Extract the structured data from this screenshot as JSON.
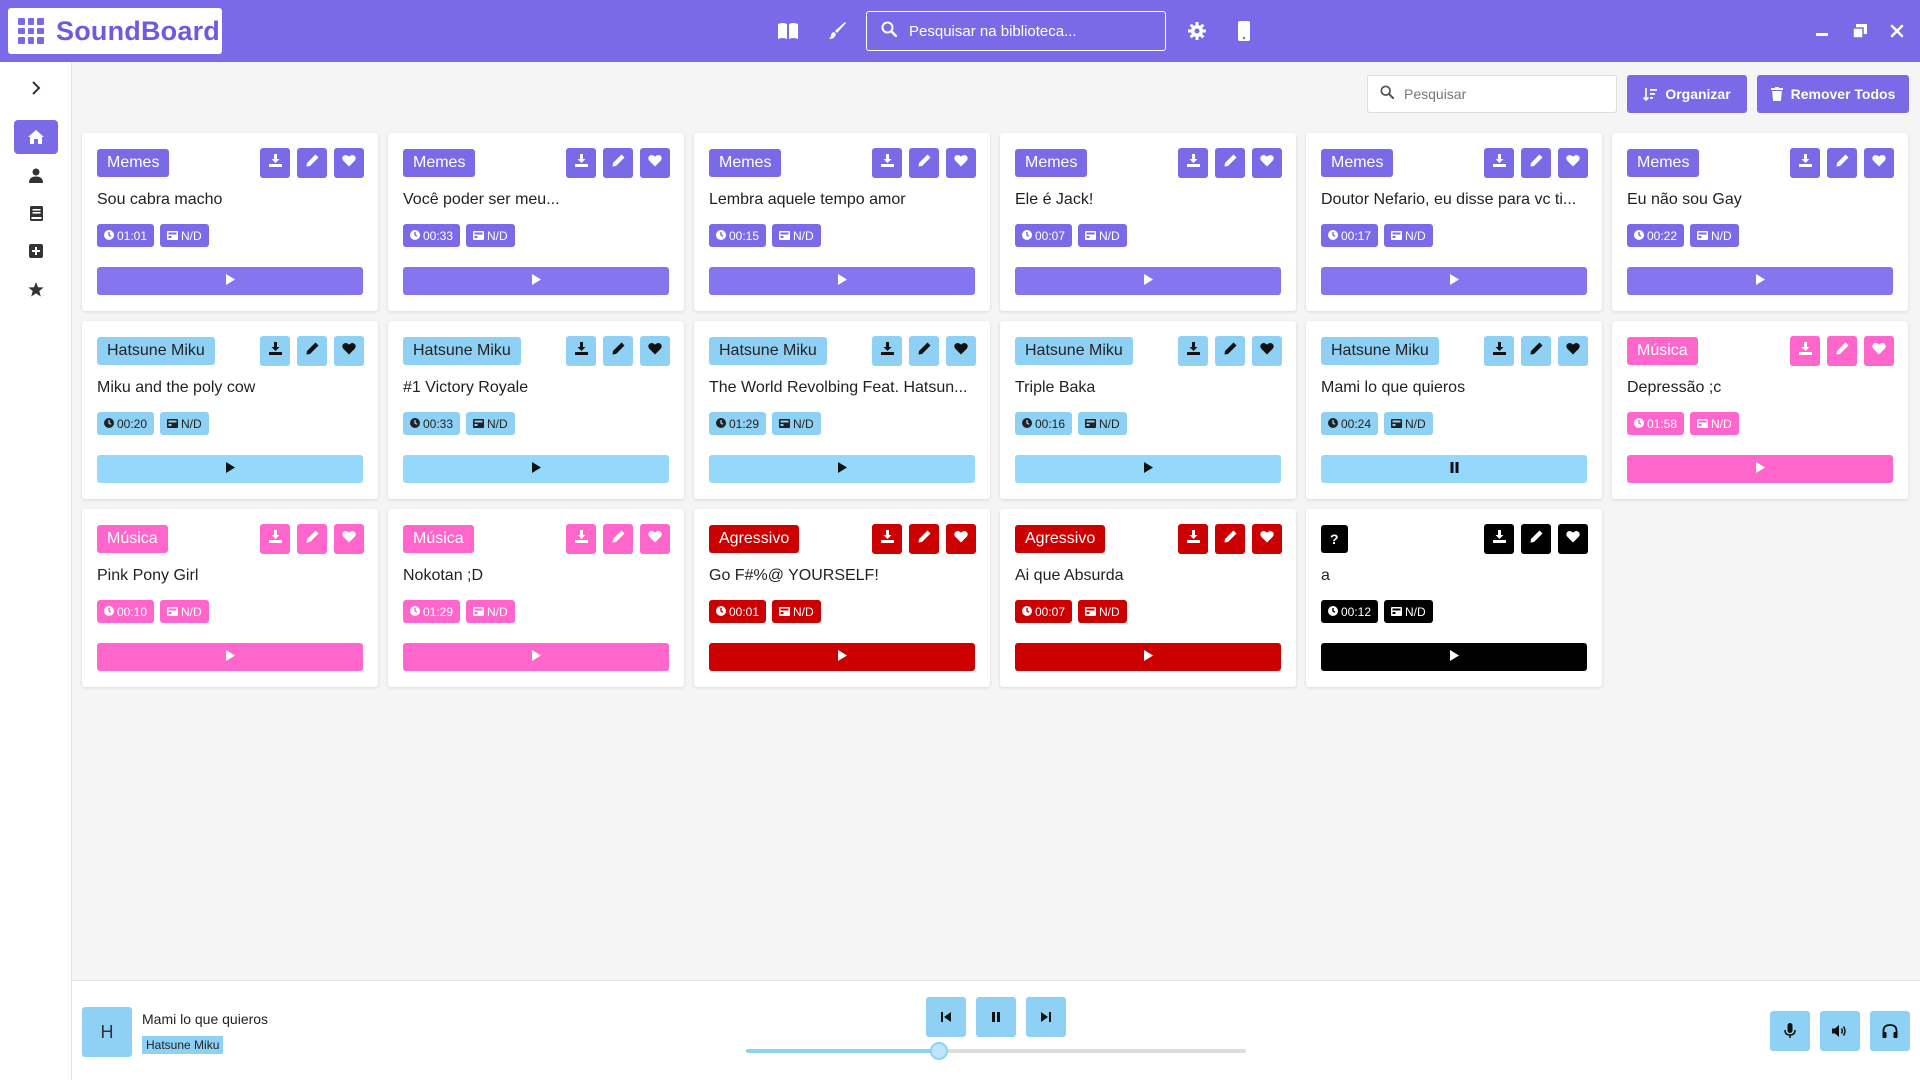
{
  "app": {
    "title": "SoundBoard"
  },
  "header": {
    "search_placeholder": "Pesquisar na biblioteca..."
  },
  "toolbar": {
    "search_placeholder": "Pesquisar",
    "organize_label": "Organizar",
    "remove_all_label": "Remover Todos"
  },
  "sidebar": {
    "items": [
      {
        "icon": "home-icon",
        "active": true
      },
      {
        "icon": "user-icon",
        "active": false
      },
      {
        "icon": "book-icon",
        "active": false
      },
      {
        "icon": "plus-square-icon",
        "active": false
      },
      {
        "icon": "star-icon",
        "active": false
      }
    ]
  },
  "colors": {
    "accent": "#7b6ae8",
    "memes": "#7b6ae8",
    "memes_play": "#8575ee",
    "miku": "#8ed1f5",
    "musica": "#ff66cc",
    "agressivo": "#cc0000",
    "unknown": "#000000"
  },
  "cards": [
    {
      "category": "Memes",
      "title": "Sou cabra macho",
      "duration": "01:01",
      "size": "N/D",
      "playing": false,
      "theme": "memes"
    },
    {
      "category": "Memes",
      "title": "Você poder ser meu...",
      "duration": "00:33",
      "size": "N/D",
      "playing": false,
      "theme": "memes"
    },
    {
      "category": "Memes",
      "title": "Lembra aquele tempo amor",
      "duration": "00:15",
      "size": "N/D",
      "playing": false,
      "theme": "memes"
    },
    {
      "category": "Memes",
      "title": "Ele é Jack!",
      "duration": "00:07",
      "size": "N/D",
      "playing": false,
      "theme": "memes"
    },
    {
      "category": "Memes",
      "title": "Doutor Nefario, eu disse para vc ti...",
      "duration": "00:17",
      "size": "N/D",
      "playing": false,
      "theme": "memes"
    },
    {
      "category": "Memes",
      "title": "Eu não sou Gay",
      "duration": "00:22",
      "size": "N/D",
      "playing": false,
      "theme": "memes"
    },
    {
      "category": "Hatsune Miku",
      "title": "Miku and the poly cow",
      "duration": "00:20",
      "size": "N/D",
      "playing": false,
      "theme": "miku"
    },
    {
      "category": "Hatsune Miku",
      "title": "#1 Victory Royale",
      "duration": "00:33",
      "size": "N/D",
      "playing": false,
      "theme": "miku"
    },
    {
      "category": "Hatsune Miku",
      "title": "The World Revolbing Feat. Hatsun...",
      "duration": "01:29",
      "size": "N/D",
      "playing": false,
      "theme": "miku"
    },
    {
      "category": "Hatsune Miku",
      "title": "Triple Baka",
      "duration": "00:16",
      "size": "N/D",
      "playing": false,
      "theme": "miku"
    },
    {
      "category": "Hatsune Miku",
      "title": "Mami lo que quieros",
      "duration": "00:24",
      "size": "N/D",
      "playing": true,
      "theme": "miku"
    },
    {
      "category": "Música",
      "title": "Depressão ;c",
      "duration": "01:58",
      "size": "N/D",
      "playing": false,
      "theme": "musica"
    },
    {
      "category": "Música",
      "title": "Pink Pony Girl",
      "duration": "00:10",
      "size": "N/D",
      "playing": false,
      "theme": "musica"
    },
    {
      "category": "Música",
      "title": "Nokotan ;D",
      "duration": "01:29",
      "size": "N/D",
      "playing": false,
      "theme": "musica"
    },
    {
      "category": "Agressivo",
      "title": "Go F#%@ YOURSELF!",
      "duration": "00:01",
      "size": "N/D",
      "playing": false,
      "theme": "agressivo"
    },
    {
      "category": "Agressivo",
      "title": "Ai que Absurda",
      "duration": "00:07",
      "size": "N/D",
      "playing": false,
      "theme": "agressivo"
    },
    {
      "category": "?",
      "title": "a",
      "duration": "00:12",
      "size": "N/D",
      "playing": false,
      "theme": "unknown"
    }
  ],
  "player": {
    "thumb_letter": "H",
    "now_playing_title": "Mami lo que quieros",
    "now_playing_category": "Hatsune Miku",
    "progress": 0.385
  }
}
